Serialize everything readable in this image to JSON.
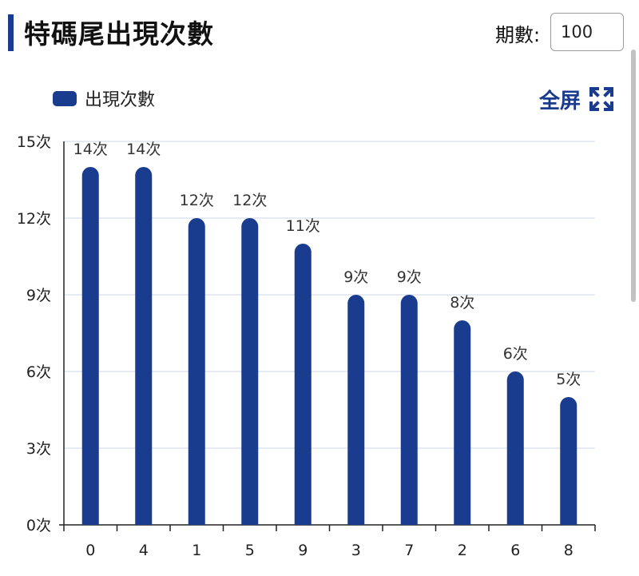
{
  "header": {
    "title": "特碼尾出現次數",
    "periods_label": "期數:",
    "periods_value": "100"
  },
  "legend": {
    "label": "出現次數"
  },
  "toolbar": {
    "fullscreen_label": "全屏",
    "fullscreen_icon": "expand-icon"
  },
  "colors": {
    "accent": "#1a3c8f",
    "bar": "#1a3c8f",
    "grid": "#dde4ee"
  },
  "chart_data": {
    "type": "bar",
    "categories": [
      "0",
      "4",
      "1",
      "5",
      "9",
      "3",
      "7",
      "2",
      "6",
      "8"
    ],
    "series": [
      {
        "name": "出現次數",
        "values": [
          14,
          14,
          12,
          12,
          11,
          9,
          9,
          8,
          6,
          5
        ]
      }
    ],
    "value_suffix": "次",
    "ylim": [
      0,
      15
    ],
    "yticks": [
      0,
      3,
      6,
      9,
      12,
      15
    ],
    "grid": true,
    "legend_position": "top-left"
  }
}
